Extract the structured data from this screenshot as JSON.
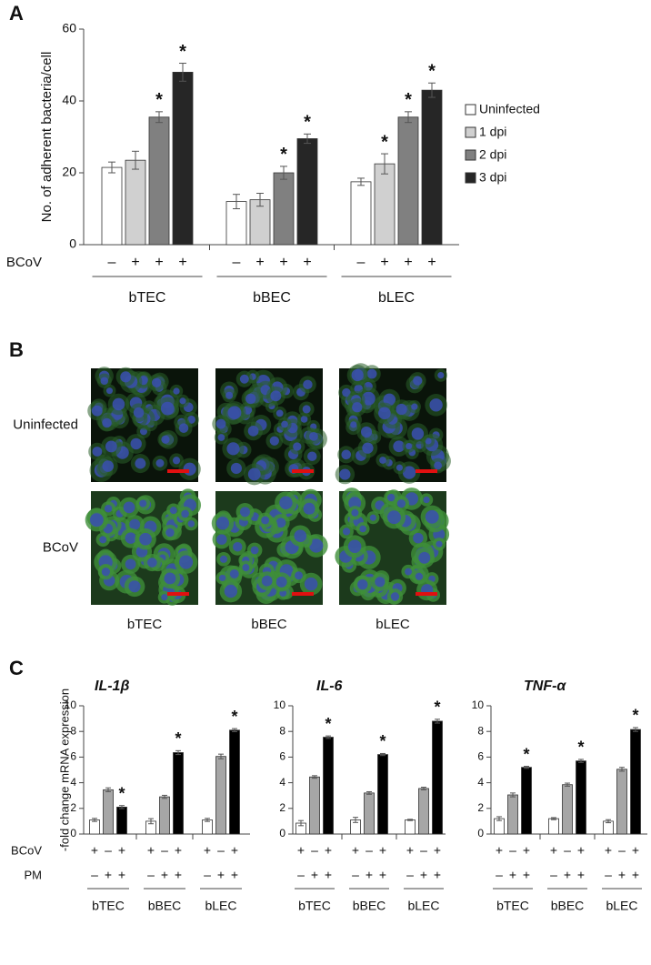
{
  "panel_labels": [
    "A",
    "B",
    "C"
  ],
  "images": {
    "rows": [
      "Uninfected",
      "BCoV"
    ],
    "columns": [
      "bTEC",
      "bBEC",
      "bLEC"
    ]
  },
  "chart_data": [
    {
      "type": "bar",
      "y_label": "No. of adherent bacteria/cell",
      "categories": [
        "bTEC",
        "bBEC",
        "bLEC"
      ],
      "ylim": [
        0,
        60
      ],
      "yticks": [
        0,
        20,
        40,
        60
      ],
      "legend": "right",
      "series": [
        {
          "name": "Uninfected",
          "color": "#ffffff",
          "values": [
            21.5,
            12,
            17.5
          ],
          "errors": [
            1.5,
            2,
            1
          ],
          "annotations": [
            null,
            null,
            null
          ]
        },
        {
          "name": "1 dpi",
          "color": "#d0d0d0",
          "values": [
            23.5,
            12.5,
            22.5
          ],
          "errors": [
            2.5,
            1.8,
            2.8
          ],
          "annotations": [
            null,
            null,
            "*"
          ]
        },
        {
          "name": "2 dpi",
          "color": "#808080",
          "values": [
            35.5,
            20,
            35.5
          ],
          "errors": [
            1.5,
            1.8,
            1.5
          ],
          "annotations": [
            "*",
            "*",
            "*"
          ]
        },
        {
          "name": "3 dpi",
          "color": "#262626",
          "values": [
            48,
            29.5,
            43
          ],
          "errors": [
            2.5,
            1.3,
            2
          ],
          "annotations": [
            "*",
            "*",
            "*"
          ]
        }
      ],
      "factor_rows": [
        {
          "label": "BCoV",
          "signs": [
            "–",
            "+",
            "+",
            "+"
          ]
        }
      ]
    },
    {
      "type": "bar",
      "title": "IL-1β",
      "y_label": "-fold change mRNA expression",
      "categories": [
        "bTEC",
        "bBEC",
        "bLEC"
      ],
      "ylim": [
        0,
        10
      ],
      "yticks": [
        0,
        2,
        4,
        6,
        8,
        10
      ],
      "series": [
        {
          "color": "#ffffff",
          "values": [
            1.1,
            1.0,
            1.1
          ],
          "errors": [
            0.12,
            0.2,
            0.12
          ],
          "annotations": [
            null,
            null,
            null
          ]
        },
        {
          "color": "#a6a6a6",
          "values": [
            3.45,
            2.9,
            6.05
          ],
          "errors": [
            0.15,
            0.12,
            0.18
          ],
          "annotations": [
            null,
            null,
            null
          ]
        },
        {
          "color": "#000000",
          "values": [
            2.1,
            6.35,
            8.1
          ],
          "errors": [
            0.12,
            0.15,
            0.12
          ],
          "annotations": [
            "*",
            "*",
            "*"
          ]
        }
      ],
      "factor_rows": [
        {
          "label": "BCoV",
          "signs": [
            "+",
            "–",
            "+"
          ]
        },
        {
          "label": "PM",
          "signs": [
            "–",
            "+",
            "+"
          ]
        }
      ]
    },
    {
      "type": "bar",
      "title": "IL-6",
      "categories": [
        "bTEC",
        "bBEC",
        "bLEC"
      ],
      "ylim": [
        0,
        10
      ],
      "yticks": [
        0,
        2,
        4,
        6,
        8,
        10
      ],
      "series": [
        {
          "color": "#ffffff",
          "values": [
            0.85,
            1.1,
            1.1
          ],
          "errors": [
            0.2,
            0.2,
            0.05
          ],
          "annotations": [
            null,
            null,
            null
          ]
        },
        {
          "color": "#a6a6a6",
          "values": [
            4.45,
            3.2,
            3.55
          ],
          "errors": [
            0.1,
            0.1,
            0.1
          ],
          "annotations": [
            null,
            null,
            null
          ]
        },
        {
          "color": "#000000",
          "values": [
            7.55,
            6.2,
            8.8
          ],
          "errors": [
            0.1,
            0.08,
            0.15
          ],
          "annotations": [
            "*",
            "*",
            "*"
          ]
        }
      ],
      "factor_rows": [
        {
          "signs": [
            "+",
            "–",
            "+"
          ]
        },
        {
          "signs": [
            "–",
            "+",
            "+"
          ]
        }
      ]
    },
    {
      "type": "bar",
      "title": "TNF-α",
      "categories": [
        "bTEC",
        "bBEC",
        "bLEC"
      ],
      "ylim": [
        0,
        10
      ],
      "yticks": [
        0,
        2,
        4,
        6,
        8,
        10
      ],
      "series": [
        {
          "color": "#ffffff",
          "values": [
            1.2,
            1.2,
            1.0
          ],
          "errors": [
            0.15,
            0.08,
            0.12
          ],
          "annotations": [
            null,
            null,
            null
          ]
        },
        {
          "color": "#a6a6a6",
          "values": [
            3.05,
            3.85,
            5.05
          ],
          "errors": [
            0.15,
            0.12,
            0.15
          ],
          "annotations": [
            null,
            null,
            null
          ]
        },
        {
          "color": "#000000",
          "values": [
            5.2,
            5.7,
            8.15
          ],
          "errors": [
            0.08,
            0.12,
            0.15
          ],
          "annotations": [
            "*",
            "*",
            "*"
          ]
        }
      ],
      "factor_rows": [
        {
          "signs": [
            "+",
            "–",
            "+"
          ]
        },
        {
          "signs": [
            "–",
            "+",
            "+"
          ]
        }
      ]
    }
  ]
}
